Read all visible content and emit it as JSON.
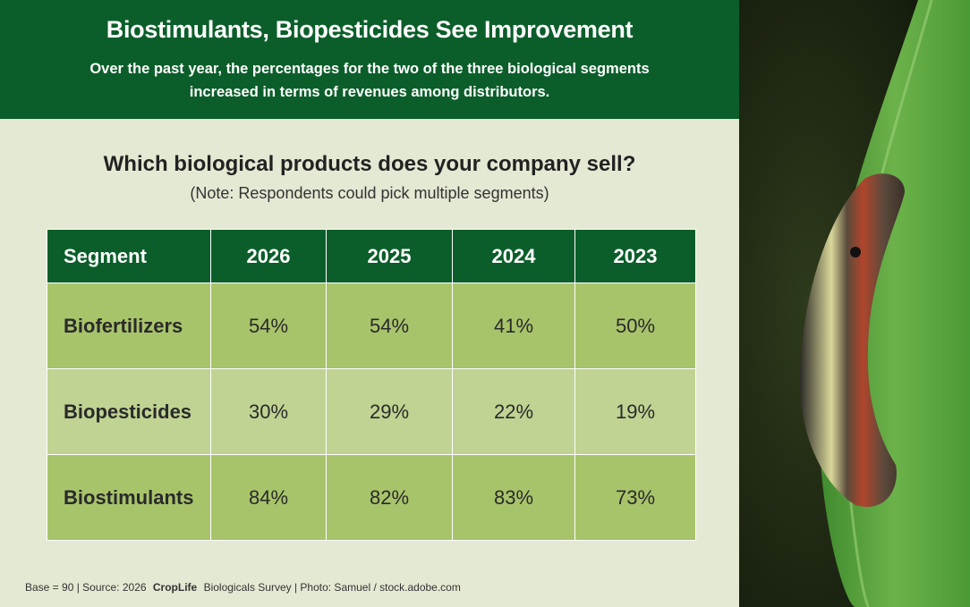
{
  "header": {
    "title": "Biostimulants, Biopesticides See Improvement",
    "subtitle": "Over the past year, the percentages for the two of the three biological segments increased in terms of revenues among distributors."
  },
  "question": "Which biological products does your company sell?",
  "note": "(Note: Respondents could pick multiple segments)",
  "table": {
    "columns": [
      "Segment",
      "2026",
      "2025",
      "2024",
      "2023"
    ],
    "rows": [
      [
        "Biofertilizers",
        "54%",
        "54%",
        "41%",
        "50%"
      ],
      [
        "Biopesticides",
        "30%",
        "29%",
        "22%",
        "19%"
      ],
      [
        "Biostimulants",
        "84%",
        "82%",
        "83%",
        "73%"
      ]
    ]
  },
  "footer": [
    "Base = 90 |  Source: 2026",
    "CropLife",
    "Biologicals Survey | Photo: Samuel  / stock.adobe.com"
  ]
}
